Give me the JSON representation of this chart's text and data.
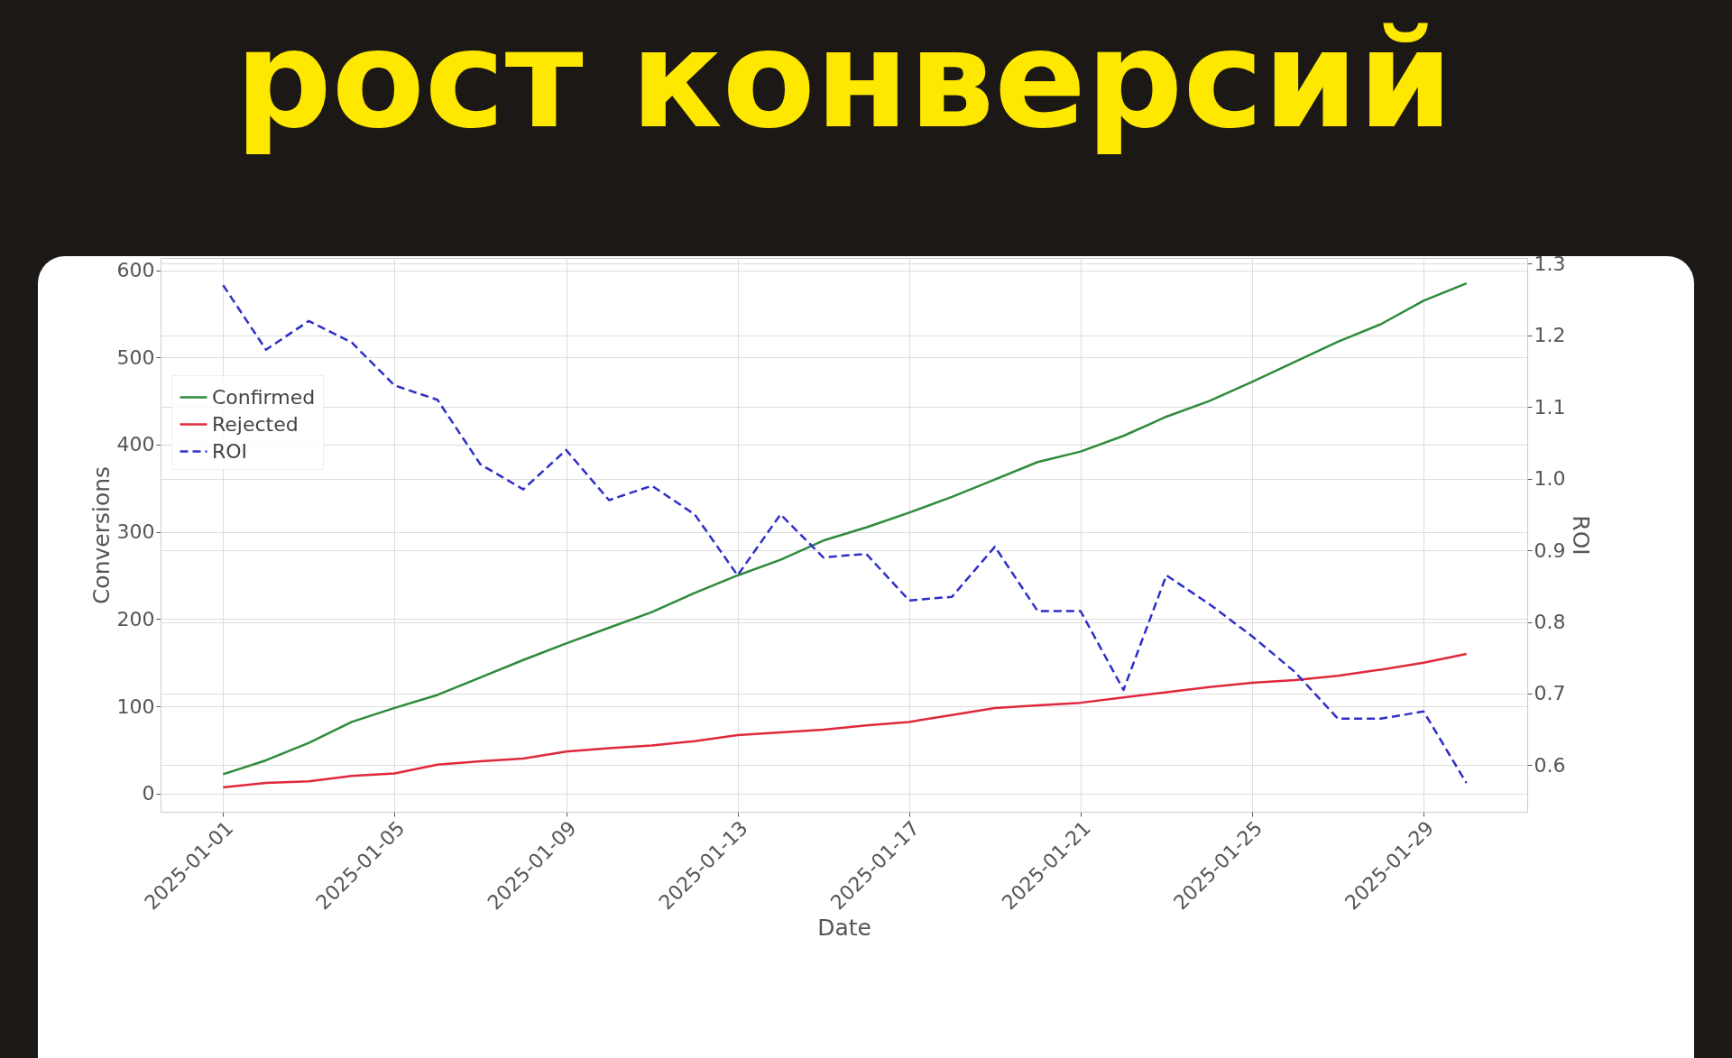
{
  "chart_data": {
    "type": "line",
    "title": "рост конверсий",
    "xlabel": "Date",
    "ylabel": "Conversions",
    "y2label": "ROI",
    "x": [
      "2025-01-01",
      "2025-01-02",
      "2025-01-03",
      "2025-01-04",
      "2025-01-05",
      "2025-01-06",
      "2025-01-07",
      "2025-01-08",
      "2025-01-09",
      "2025-01-10",
      "2025-01-11",
      "2025-01-12",
      "2025-01-13",
      "2025-01-14",
      "2025-01-15",
      "2025-01-16",
      "2025-01-17",
      "2025-01-18",
      "2025-01-19",
      "2025-01-20",
      "2025-01-21",
      "2025-01-22",
      "2025-01-23",
      "2025-01-24",
      "2025-01-25",
      "2025-01-26",
      "2025-01-27",
      "2025-01-28",
      "2025-01-29",
      "2025-01-30"
    ],
    "series": [
      {
        "name": "Confirmed",
        "color": "#2e8b3a",
        "line_style": "solid",
        "values": [
          22,
          38,
          58,
          82,
          98,
          113,
          133,
          153,
          172,
          190,
          208,
          230,
          250,
          268,
          290,
          305,
          322,
          340,
          360,
          380,
          392,
          410,
          432,
          450,
          472,
          495,
          518,
          538,
          565,
          585
        ]
      },
      {
        "name": "Rejected",
        "color": "#e0283c",
        "line_style": "solid",
        "values": [
          7,
          12,
          14,
          20,
          23,
          33,
          37,
          40,
          48,
          52,
          55,
          60,
          67,
          70,
          73,
          78,
          82,
          90,
          98,
          101,
          104,
          110,
          116,
          122,
          127,
          130,
          135,
          142,
          150,
          160
        ]
      },
      {
        "name": "ROI",
        "color": "#2f2fc8",
        "line_style": "dashed",
        "axis": "y2",
        "values": [
          1.27,
          1.18,
          1.22,
          1.19,
          1.13,
          1.11,
          1.02,
          0.985,
          1.04,
          0.97,
          0.99,
          0.95,
          0.865,
          0.95,
          0.89,
          0.895,
          0.83,
          0.835,
          0.905,
          0.815,
          0.815,
          0.705,
          0.865,
          0.825,
          0.78,
          0.73,
          0.665,
          0.665,
          0.675,
          0.575
        ]
      }
    ],
    "xlim": [
      "2024-12-30T13:00",
      "2025-01-31T10:00"
    ],
    "xticks": [
      "2025-01-01",
      "2025-01-05",
      "2025-01-09",
      "2025-01-13",
      "2025-01-17",
      "2025-01-21",
      "2025-01-25",
      "2025-01-29"
    ],
    "ylim": [
      -21,
      614
    ],
    "yticks": [
      0,
      100,
      200,
      300,
      400,
      500,
      600
    ],
    "y2lim": [
      0.535,
      1.308
    ],
    "y2ticks": [
      {
        "value": 0.6,
        "label": "0.6"
      },
      {
        "value": 0.7,
        "label": "0.7"
      },
      {
        "value": 0.8,
        "label": "0.8"
      },
      {
        "value": 0.9,
        "label": "0.9"
      },
      {
        "value": 1.0,
        "label": "1.0"
      },
      {
        "value": 1.1,
        "label": "1.1"
      },
      {
        "value": 1.2,
        "label": "1.2"
      },
      {
        "value": 1.3,
        "label": "1.3"
      }
    ],
    "grid": true,
    "legend": "top left"
  }
}
